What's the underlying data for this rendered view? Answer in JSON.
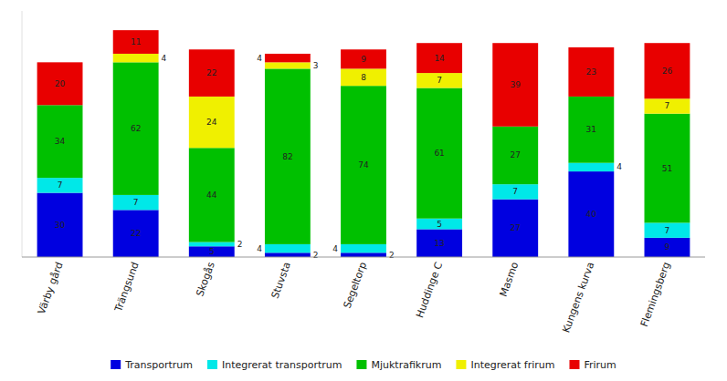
{
  "chart_data": {
    "type": "bar",
    "stacked": true,
    "data_labels": true,
    "tick_labels": "x",
    "legend": "bottom",
    "categories": [
      "Värby gård",
      "Trängsund",
      "Skogås",
      "Stuvsta",
      "Segeltorp",
      "Huddinge C",
      "Masmo",
      "Kungens kurva",
      "Flemingsberg"
    ],
    "ylim": [
      0,
      115
    ],
    "series": [
      {
        "name": "Transportrum",
        "color": "#0000e0",
        "values": [
          30,
          22,
          5,
          2,
          2,
          13,
          27,
          40,
          9
        ]
      },
      {
        "name": "Integrerat transportrum",
        "color": "#00e8e8",
        "values": [
          7,
          7,
          2,
          4,
          4,
          5,
          7,
          4,
          7
        ]
      },
      {
        "name": "Mjuktrafikrum",
        "color": "#00c000",
        "values": [
          34,
          62,
          44,
          82,
          74,
          61,
          27,
          31,
          51
        ]
      },
      {
        "name": "Integrerat frirum",
        "color": "#f0f000",
        "values": [
          0,
          4,
          24,
          3,
          8,
          7,
          0,
          0,
          7
        ]
      },
      {
        "name": "Frirum",
        "color": "#e80000",
        "values": [
          20,
          11,
          22,
          4,
          9,
          14,
          39,
          23,
          26
        ]
      }
    ]
  }
}
